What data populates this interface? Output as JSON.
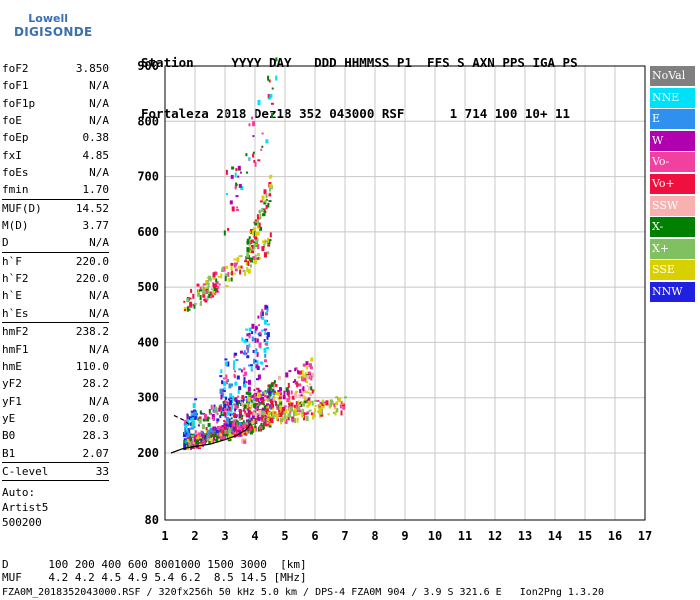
{
  "logo": {
    "line1": "Lowell",
    "line2": "DIGISONDE"
  },
  "header": {
    "line1": [
      "Station",
      "YYYY",
      "DAY",
      "DDD",
      "HHMMSS",
      "P1",
      "FFS",
      "S",
      "AXN",
      "PPS",
      "IGA",
      "PS"
    ],
    "line2": [
      "Fortaleza",
      "2018",
      "Dez18",
      "352",
      "043000",
      "RSF",
      "",
      "1",
      "714",
      "100",
      "10+",
      "11"
    ]
  },
  "parameters": [
    {
      "name": "foF2",
      "value": "3.850"
    },
    {
      "name": "foF1",
      "value": "N/A"
    },
    {
      "name": "foF1p",
      "value": "N/A"
    },
    {
      "name": "foE",
      "value": "N/A"
    },
    {
      "name": "foEp",
      "value": "0.38"
    },
    {
      "name": "fxI",
      "value": "4.85"
    },
    {
      "name": "foEs",
      "value": "N/A"
    },
    {
      "name": "fmin",
      "value": "1.70",
      "sep": true
    },
    {
      "name": "MUF(D)",
      "value": "14.52"
    },
    {
      "name": "M(D)",
      "value": "3.77"
    },
    {
      "name": "D",
      "value": "N/A",
      "sep": true
    },
    {
      "name": "h`F",
      "value": "220.0"
    },
    {
      "name": "h`F2",
      "value": "220.0"
    },
    {
      "name": "h`E",
      "value": "N/A"
    },
    {
      "name": "h`Es",
      "value": "N/A",
      "sep": true
    },
    {
      "name": "hmF2",
      "value": "238.2"
    },
    {
      "name": "hmF1",
      "value": "N/A"
    },
    {
      "name": "hmE",
      "value": "110.0"
    },
    {
      "name": "yF2",
      "value": "28.2"
    },
    {
      "name": "yF1",
      "value": "N/A"
    },
    {
      "name": "yE",
      "value": "20.0"
    },
    {
      "name": "B0",
      "value": "28.3"
    },
    {
      "name": "B1",
      "value": "2.07",
      "sep": true
    },
    {
      "name": "C-level",
      "value": "33",
      "sep": true
    }
  ],
  "autoscaling": {
    "line1": "Auto:",
    "line2": "Artist5",
    "line3": "500200"
  },
  "legend": [
    {
      "label": "NoVal",
      "color": "#808080"
    },
    {
      "label": "NNE",
      "color": "#00e0f8"
    },
    {
      "label": "E",
      "color": "#3090f0"
    },
    {
      "label": "W",
      "color": "#b000b0"
    },
    {
      "label": "Vo-",
      "color": "#f040a0"
    },
    {
      "label": "Vo+",
      "color": "#f01040"
    },
    {
      "label": "SSW",
      "color": "#f8b0b0"
    },
    {
      "label": "X-",
      "color": "#008000"
    },
    {
      "label": "X+",
      "color": "#80c060"
    },
    {
      "label": "SSE",
      "color": "#d8d000"
    },
    {
      "label": "NNW",
      "color": "#2020e0"
    }
  ],
  "footer": {
    "d_label": "D",
    "d_values": [
      "100",
      "200",
      "400",
      "600",
      "800",
      "1000",
      "1500",
      "3000",
      "[km]"
    ],
    "muf_label": "MUF",
    "muf_values": [
      "4.2",
      "4.2",
      "4.5",
      "4.9",
      "5.4",
      "6.2",
      "8.5",
      "14.5",
      "[MHz]"
    ],
    "info": "FZA0M_2018352043000.RSF / 320fx256h 50 kHz 5.0 km / DPS-4 FZA0M 904 / 3.9 S 321.6 E",
    "version": "Ion2Png 1.3.20"
  },
  "chart_data": {
    "type": "scatter",
    "xlim": [
      1,
      17
    ],
    "ylim": [
      80,
      900
    ],
    "x_ticks": [
      "1",
      "2",
      "3",
      "4",
      "5",
      "6",
      "7",
      "8",
      "9",
      "10",
      "11",
      "12",
      "13",
      "14",
      "15",
      "16",
      "17"
    ],
    "y_ticks": [
      "80",
      "200",
      "300",
      "400",
      "500",
      "600",
      "700",
      "800",
      "900"
    ],
    "y_tick_values": [
      80,
      200,
      300,
      400,
      500,
      600,
      700,
      800,
      900
    ],
    "grid": true,
    "legend_position": "right",
    "profile_curve": [
      [
        1.2,
        200
      ],
      [
        1.6,
        208
      ],
      [
        2.0,
        212
      ],
      [
        2.5,
        216
      ],
      [
        3.0,
        224
      ],
      [
        3.4,
        232
      ],
      [
        3.7,
        242
      ],
      [
        3.85,
        252
      ]
    ],
    "profile_dashed": [
      [
        1.3,
        268
      ],
      [
        1.6,
        260
      ],
      [
        1.8,
        252
      ]
    ],
    "trace_clusters": [
      {
        "x": [
          1.7,
          4.0
        ],
        "y_start": 222,
        "y_end": 255,
        "spread": 12,
        "n": 260,
        "colors": [
          "#f01040",
          "#f040a0",
          "#008000",
          "#b000b0",
          "#d8d000"
        ]
      },
      {
        "x": [
          1.6,
          4.6
        ],
        "y_start": 240,
        "y_end": 300,
        "spread": 30,
        "n": 260,
        "colors": [
          "#b000b0",
          "#f01040",
          "#2020e0",
          "#008000",
          "#80c060",
          "#3090f0",
          "#f040a0"
        ]
      },
      {
        "x": [
          3.5,
          5.9
        ],
        "y_start": 255,
        "y_end": 340,
        "spread": 40,
        "n": 240,
        "colors": [
          "#f01040",
          "#d8d000",
          "#f040a0",
          "#b000b0",
          "#008000",
          "#f8b0b0"
        ]
      },
      {
        "x": [
          4.2,
          7.0
        ],
        "y_start": 270,
        "y_end": 290,
        "spread": 15,
        "n": 150,
        "colors": [
          "#d8d000",
          "#d8d000",
          "#f01040",
          "#f040a0",
          "#80c060"
        ]
      },
      {
        "x": [
          2.8,
          4.4
        ],
        "y_start": 300,
        "y_end": 420,
        "spread": 60,
        "n": 150,
        "colors": [
          "#00e0f8",
          "#b000b0",
          "#2020e0",
          "#f040a0",
          "#3090f0"
        ]
      },
      {
        "x": [
          1.6,
          4.5
        ],
        "y_start": 470,
        "y_end": 580,
        "spread": 20,
        "n": 140,
        "colors": [
          "#f01040",
          "#d8d000",
          "#f040a0",
          "#008000",
          "#80c060"
        ]
      },
      {
        "x": [
          3.7,
          4.5
        ],
        "y_start": 560,
        "y_end": 690,
        "spread": 25,
        "n": 80,
        "colors": [
          "#008000",
          "#80c060",
          "#d8d000",
          "#f01040"
        ]
      },
      {
        "x": [
          2.9,
          4.7
        ],
        "y_start": 640,
        "y_end": 860,
        "spread": 60,
        "n": 50,
        "colors": [
          "#b000b0",
          "#f040a0",
          "#f01040",
          "#008000",
          "#00e0f8"
        ]
      },
      {
        "x": [
          1.6,
          2.0
        ],
        "y_start": 228,
        "y_end": 285,
        "spread": 20,
        "n": 40,
        "colors": [
          "#00e0f8",
          "#3090f0",
          "#2020e0"
        ]
      }
    ]
  }
}
